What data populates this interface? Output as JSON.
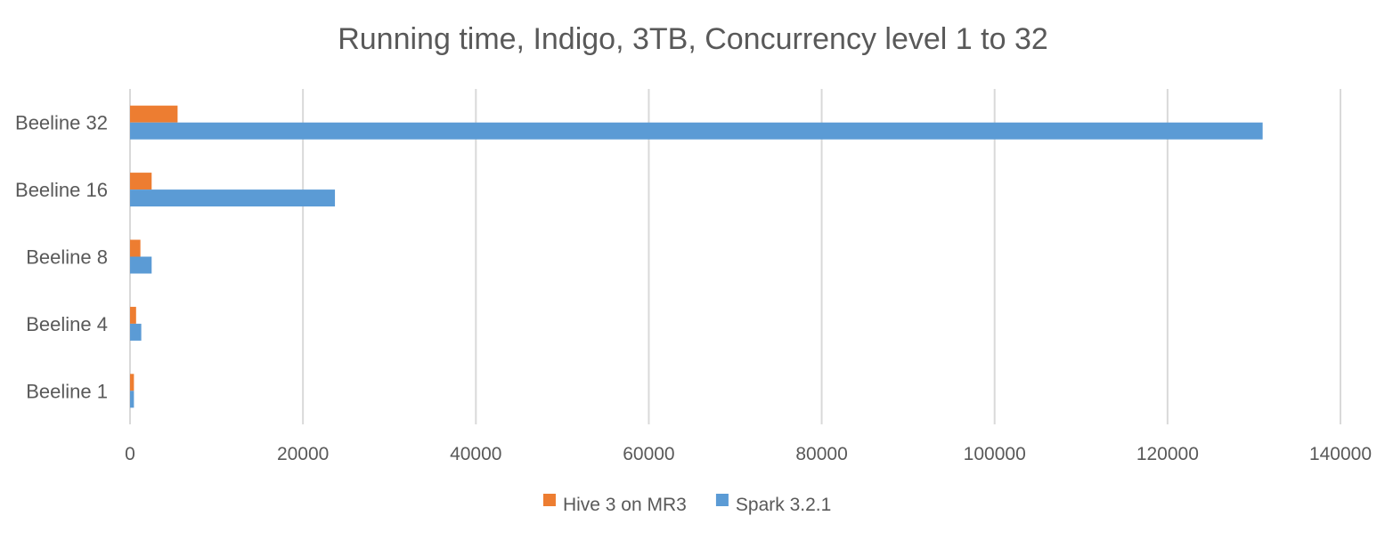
{
  "chart_data": {
    "type": "bar",
    "orientation": "horizontal",
    "title": "Running time, Indigo, 3TB, Concurrency level 1 to 32",
    "xlabel": "",
    "ylabel": "",
    "categories": [
      "Beeline 1",
      "Beeline 4",
      "Beeline 8",
      "Beeline 16",
      "Beeline 32"
    ],
    "series": [
      {
        "name": "Hive 3 on MR3",
        "color": "#ED7D31",
        "values": [
          450,
          700,
          1200,
          2500,
          5500
        ]
      },
      {
        "name": "Spark 3.2.1",
        "color": "#5B9BD5",
        "values": [
          450,
          1300,
          2500,
          23700,
          131000
        ]
      }
    ],
    "xlim": [
      0,
      140000
    ],
    "xticks": [
      0,
      20000,
      40000,
      60000,
      80000,
      100000,
      120000,
      140000
    ],
    "grid": true,
    "legend_position": "bottom"
  }
}
